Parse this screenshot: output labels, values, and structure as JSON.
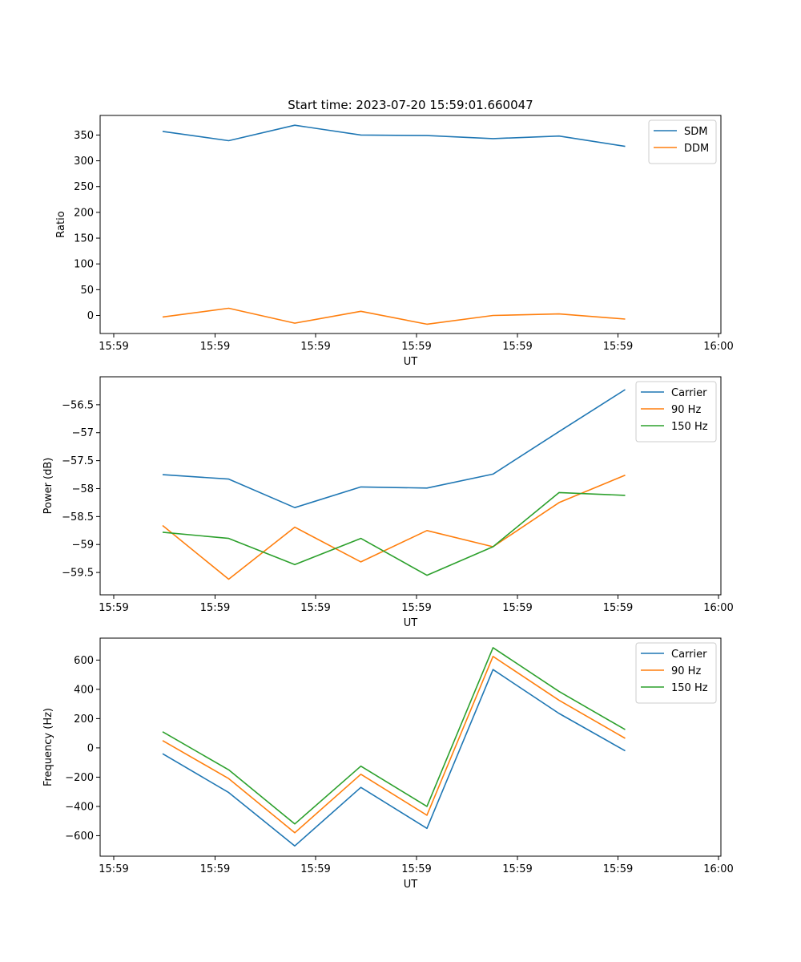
{
  "figure_title": "Start time: 2023-07-20 15:59:01.660047",
  "chart_data": [
    {
      "type": "line",
      "ylabel": "Ratio",
      "xlabel": "UT",
      "x_ticks": [
        "15:59",
        "15:59",
        "15:59",
        "15:59",
        "15:59",
        "15:59",
        "16:00"
      ],
      "ylim": [
        -35,
        388
      ],
      "y_ticks": [
        0,
        50,
        100,
        150,
        200,
        250,
        300,
        350
      ],
      "legend_position": "top-right",
      "series": [
        {
          "name": "SDM",
          "color": "#1f77b4",
          "values": [
            357,
            339,
            369,
            350,
            349,
            343,
            348,
            328
          ]
        },
        {
          "name": "DDM",
          "color": "#ff7f0e",
          "values": [
            -3,
            14,
            -15,
            8,
            -17,
            0,
            3,
            -7
          ]
        }
      ]
    },
    {
      "type": "line",
      "ylabel": "Power (dB)",
      "xlabel": "UT",
      "x_ticks": [
        "15:59",
        "15:59",
        "15:59",
        "15:59",
        "15:59",
        "15:59",
        "16:00"
      ],
      "ylim": [
        -59.9,
        -56.0
      ],
      "y_ticks": [
        -59.5,
        -59.0,
        -58.5,
        -58.0,
        -57.5,
        -57.0,
        -56.5
      ],
      "legend_position": "top-right",
      "series": [
        {
          "name": "Carrier",
          "color": "#1f77b4",
          "values": [
            -57.75,
            -57.83,
            -58.34,
            -57.97,
            -57.99,
            -57.74,
            -56.98,
            -56.23
          ]
        },
        {
          "name": "90 Hz",
          "color": "#ff7f0e",
          "values": [
            -58.66,
            -59.62,
            -58.69,
            -59.31,
            -58.75,
            -59.04,
            -58.25,
            -57.76
          ]
        },
        {
          "name": "150 Hz",
          "color": "#2ca02c",
          "values": [
            -58.78,
            -58.89,
            -59.36,
            -58.89,
            -59.55,
            -59.04,
            -58.07,
            -58.12
          ]
        }
      ]
    },
    {
      "type": "line",
      "ylabel": "Frequency (Hz)",
      "xlabel": "UT",
      "x_ticks": [
        "15:59",
        "15:59",
        "15:59",
        "15:59",
        "15:59",
        "15:59",
        "16:00"
      ],
      "ylim": [
        -740,
        750
      ],
      "y_ticks": [
        -600,
        -400,
        -200,
        0,
        200,
        400,
        600
      ],
      "legend_position": "top-right",
      "series": [
        {
          "name": "Carrier",
          "color": "#1f77b4",
          "values": [
            -40,
            -305,
            -670,
            -270,
            -550,
            535,
            235,
            -20
          ]
        },
        {
          "name": "90 Hz",
          "color": "#ff7f0e",
          "values": [
            50,
            -210,
            -580,
            -180,
            -460,
            625,
            325,
            65
          ]
        },
        {
          "name": "150 Hz",
          "color": "#2ca02c",
          "values": [
            110,
            -150,
            -520,
            -125,
            -400,
            685,
            385,
            125
          ]
        }
      ]
    }
  ]
}
